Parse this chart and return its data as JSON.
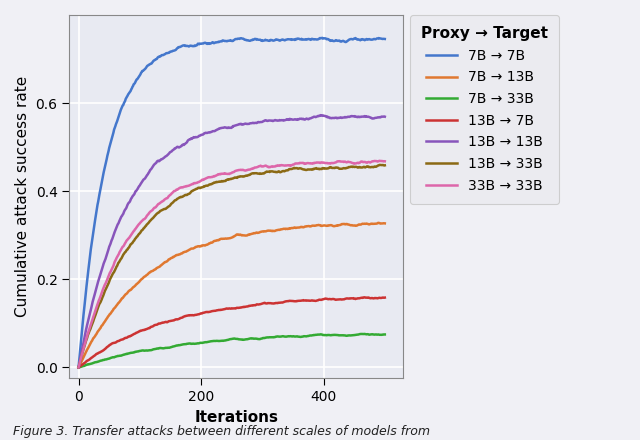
{
  "title": "",
  "xlabel": "Iterations",
  "ylabel": "Cumulative attack success rate",
  "xlim": [
    -15,
    530
  ],
  "ylim": [
    -0.025,
    0.8
  ],
  "yticks": [
    0.0,
    0.2,
    0.4,
    0.6
  ],
  "xticks": [
    0,
    200,
    400
  ],
  "plot_bg_color": "#e8eaf2",
  "fig_bg_color": "#f0f0f5",
  "grid_color": "#ffffff",
  "caption": "Figure 3. Transfer attacks between different scales of models from",
  "series": [
    {
      "label": "7B → 7B",
      "color": "#4477cc",
      "final_value": 0.745,
      "rate": 0.022,
      "seed": 11,
      "noise_scale": 0.008
    },
    {
      "label": "7B → 13B",
      "color": "#e07830",
      "final_value": 0.33,
      "rate": 0.009,
      "seed": 22,
      "noise_scale": 0.005
    },
    {
      "label": "7B → 33B",
      "color": "#33aa33",
      "final_value": 0.08,
      "rate": 0.006,
      "seed": 33,
      "noise_scale": 0.003
    },
    {
      "label": "13B → 7B",
      "color": "#cc3333",
      "final_value": 0.163,
      "rate": 0.007,
      "seed": 44,
      "noise_scale": 0.004
    },
    {
      "label": "13B → 13B",
      "color": "#8855bb",
      "final_value": 0.57,
      "rate": 0.013,
      "seed": 55,
      "noise_scale": 0.007
    },
    {
      "label": "13B → 33B",
      "color": "#8b6914",
      "final_value": 0.458,
      "rate": 0.011,
      "seed": 66,
      "noise_scale": 0.006
    },
    {
      "label": "33B → 33B",
      "color": "#dd66aa",
      "final_value": 0.468,
      "rate": 0.012,
      "seed": 77,
      "noise_scale": 0.006
    }
  ],
  "n_points": 500,
  "legend_title": "Proxy → Target",
  "legend_fontsize": 10,
  "legend_title_fontsize": 11,
  "axis_label_fontsize": 11,
  "tick_fontsize": 10,
  "linewidth": 1.8
}
